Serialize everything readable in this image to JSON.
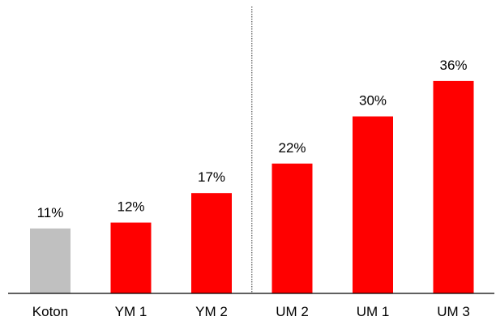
{
  "chart_data": {
    "type": "bar",
    "title": "",
    "xlabel": "",
    "ylabel": "",
    "ylim": [
      0,
      40
    ],
    "categories": [
      "Koton",
      "YM 1",
      "YM 2",
      "UM 2",
      "UM 1",
      "UM 3"
    ],
    "values": [
      11,
      12,
      17,
      22,
      30,
      36
    ],
    "value_labels": [
      "11%",
      "12%",
      "17%",
      "22%",
      "30%",
      "36%"
    ],
    "bar_colors": [
      "#c0c0c0",
      "#ff0000",
      "#ff0000",
      "#ff0000",
      "#ff0000",
      "#ff0000"
    ],
    "grid": false,
    "legend": "none",
    "divider": {
      "after_category": "YM 2",
      "style": "dotted",
      "color": "#333333"
    },
    "axis_color": "#000000",
    "text_color": "#000000"
  }
}
